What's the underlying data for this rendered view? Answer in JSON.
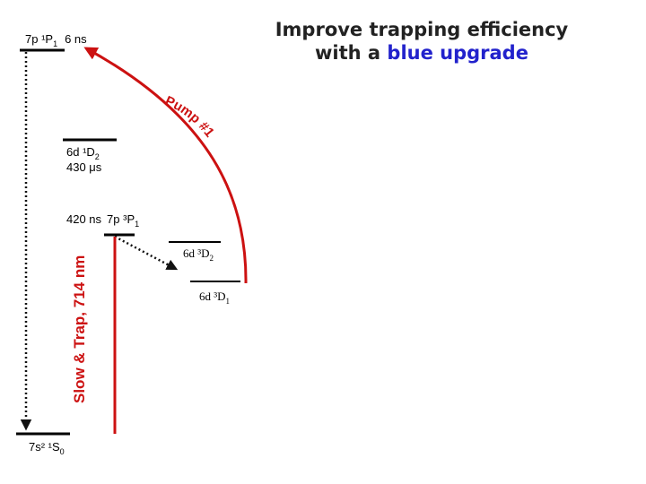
{
  "title": {
    "line1": "Improve trapping efficiency",
    "line2_prefix": "with a ",
    "line2_highlight": "blue upgrade",
    "highlight_color": "#2222cc"
  },
  "levels": {
    "p1_1": {
      "term": "7p ¹P",
      "sub": "1",
      "lifetime": "6 ns"
    },
    "d1_2": {
      "term": "6d ¹D",
      "sub": "2",
      "lifetime": "430 μs"
    },
    "p3_1": {
      "lifetime": "420 ns",
      "term": "7p ³P",
      "sub": "1"
    },
    "d3_2": {
      "term": "6d ³D",
      "sub": "2"
    },
    "d3_1": {
      "term": "6d ³D",
      "sub": "1"
    },
    "ground": {
      "term": "7s² ¹S",
      "sub": "0"
    }
  },
  "transitions": {
    "pump": {
      "label": "Pump #1",
      "color": "#cc1111"
    },
    "trap": {
      "label": "Slow & Trap, 714 nm",
      "color": "#cc1111"
    }
  }
}
